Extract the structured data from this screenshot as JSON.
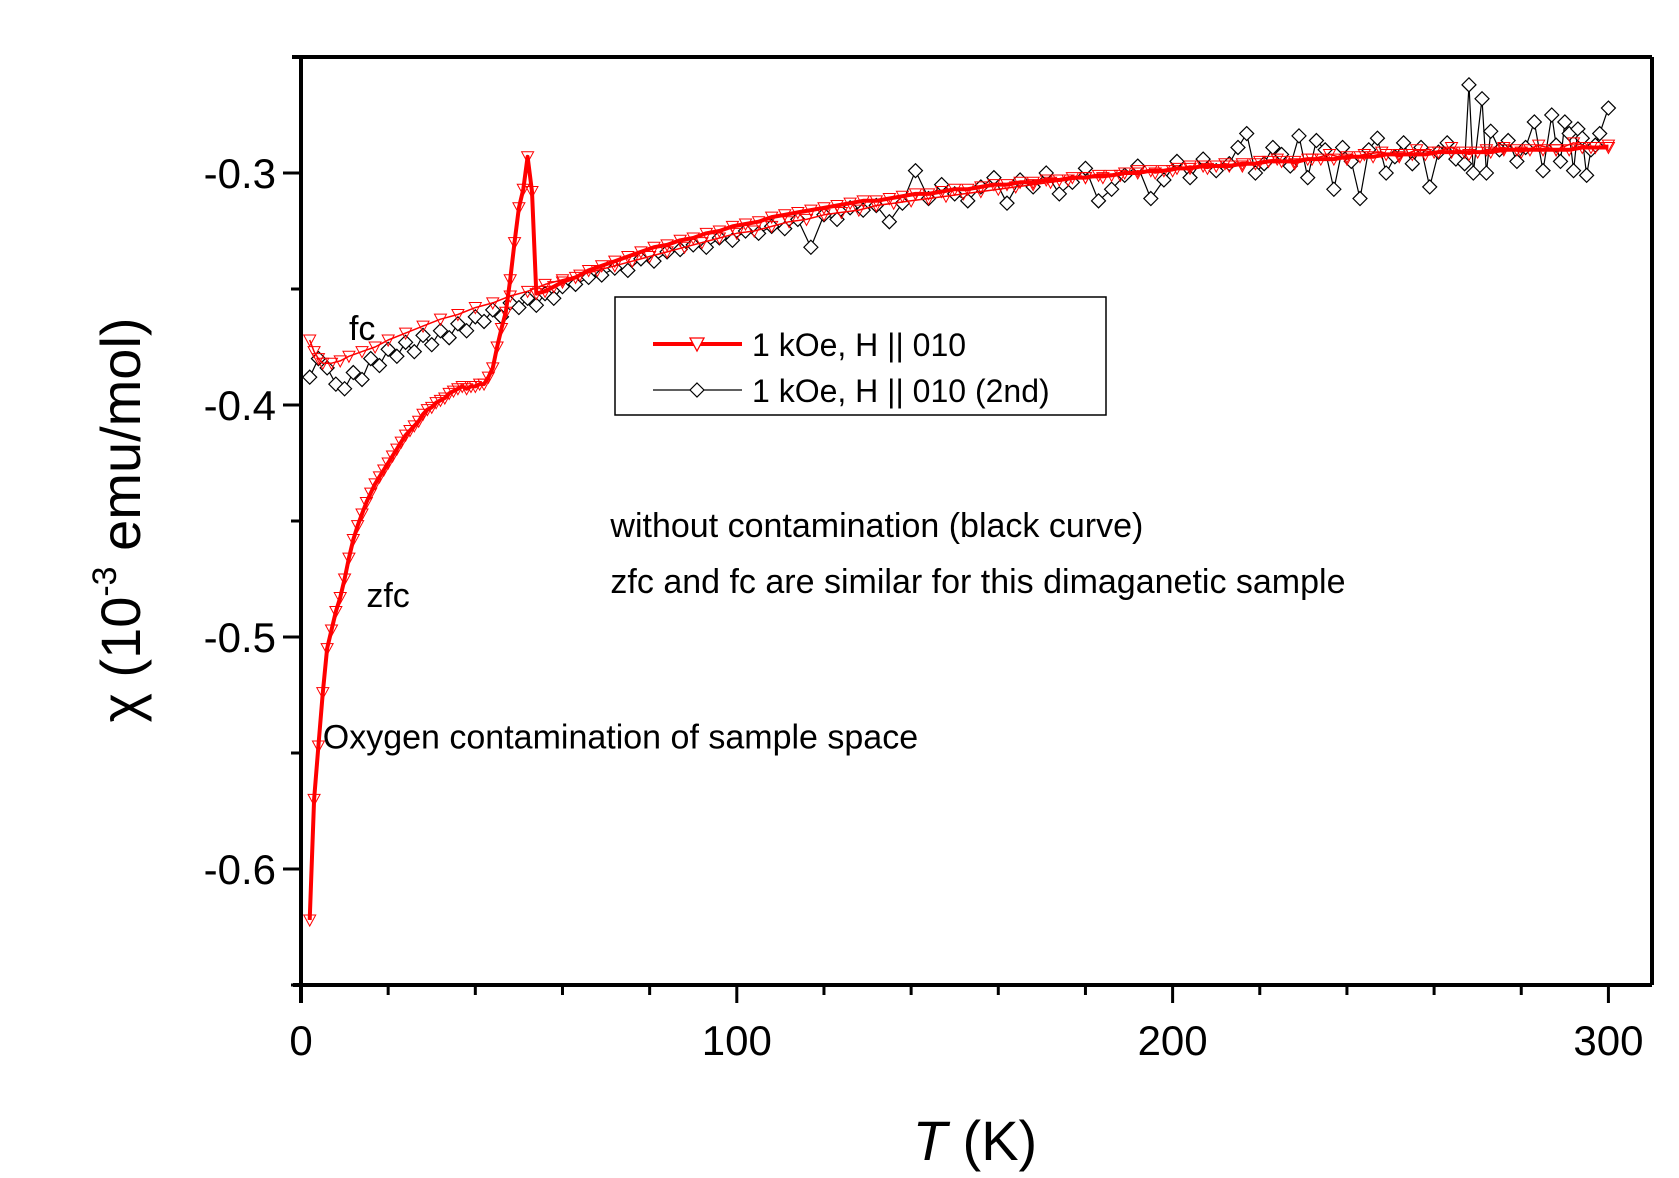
{
  "chart_data": {
    "type": "line",
    "title": "",
    "xlabel": {
      "italic": "T",
      "rest": " (K)"
    },
    "ylabel": {
      "prefix": "χ (10",
      "sup": "-3",
      "suffix": " emu/mol)"
    },
    "xlim": [
      0,
      310
    ],
    "ylim": [
      -0.65,
      -0.25
    ],
    "x_ticks_major": [
      0,
      100,
      200,
      300
    ],
    "x_tick_labels": [
      "0",
      "100",
      "200",
      "300"
    ],
    "x_ticks_minor_step": 20,
    "y_ticks_major": [
      -0.3,
      -0.4,
      -0.5,
      -0.6
    ],
    "y_tick_labels": [
      "-0.3",
      "-0.4",
      "-0.5",
      "-0.6"
    ],
    "y_ticks_minor": [
      -0.35,
      -0.45,
      -0.55,
      -0.65
    ],
    "grid": false,
    "legend": {
      "placement": "center",
      "entries": [
        {
          "label": "1 kOe, H || 010",
          "color": "#ff0000",
          "marker": "triangle-down"
        },
        {
          "label": "1 kOe, H || 010 (2nd)",
          "color": "#000000",
          "marker": "diamond"
        }
      ]
    },
    "annotations": [
      {
        "text": "fc",
        "x": 11,
        "y": -0.372
      },
      {
        "text": "zfc",
        "x": 15,
        "y": -0.487
      },
      {
        "text": "Oxygen contamination of sample space",
        "x": 5,
        "y": -0.548
      },
      {
        "text": "without contamination (black curve)",
        "x": 71,
        "y": -0.457
      },
      {
        "text": "zfc and fc are similar for this dimaganetic sample",
        "x": 71,
        "y": -0.481
      }
    ],
    "series": [
      {
        "name": "1 kOe, H || 010",
        "color": "#ff0000",
        "marker": "triangle-down",
        "segments": [
          {
            "label": "zfc",
            "x": [
              2,
              3,
              4,
              5,
              6,
              7,
              8,
              9,
              10,
              11,
              12,
              13,
              14,
              15,
              16,
              17,
              18,
              19,
              20,
              21,
              22,
              23,
              24,
              25,
              26,
              27,
              28,
              29,
              30,
              31,
              32,
              33,
              34,
              35,
              36,
              37,
              38,
              39,
              40,
              41,
              42,
              43,
              44,
              45,
              46,
              47,
              48,
              49,
              50,
              51,
              52,
              53,
              54,
              56,
              58,
              60,
              63,
              66,
              69,
              72,
              75,
              78,
              81,
              84,
              87,
              90,
              93,
              96,
              99,
              102,
              105,
              108,
              111,
              114,
              117,
              120,
              123,
              126,
              129,
              132,
              135,
              138,
              141,
              144,
              147,
              150,
              153,
              156,
              159,
              162,
              165,
              168,
              171,
              174,
              177,
              180,
              183,
              186,
              189,
              192,
              195,
              198,
              201,
              204,
              207,
              210,
              213,
              216,
              219,
              222,
              225,
              228,
              231,
              234,
              237,
              240,
              243,
              246,
              249,
              252,
              255,
              258,
              261,
              264,
              267,
              270,
              273,
              276,
              279,
              282,
              285,
              288,
              291,
              294,
              297,
              300
            ],
            "y": [
              -0.622,
              -0.57,
              -0.547,
              -0.524,
              -0.505,
              -0.497,
              -0.489,
              -0.483,
              -0.475,
              -0.466,
              -0.458,
              -0.452,
              -0.447,
              -0.442,
              -0.438,
              -0.434,
              -0.431,
              -0.428,
              -0.425,
              -0.422,
              -0.419,
              -0.416,
              -0.413,
              -0.411,
              -0.409,
              -0.407,
              -0.404,
              -0.402,
              -0.401,
              -0.399,
              -0.398,
              -0.397,
              -0.395,
              -0.394,
              -0.393,
              -0.392,
              -0.393,
              -0.392,
              -0.392,
              -0.391,
              -0.391,
              -0.388,
              -0.384,
              -0.375,
              -0.367,
              -0.36,
              -0.346,
              -0.33,
              -0.315,
              -0.307,
              -0.293,
              -0.308,
              -0.352,
              -0.351,
              -0.349,
              -0.347,
              -0.345,
              -0.342,
              -0.34,
              -0.338,
              -0.336,
              -0.334,
              -0.332,
              -0.331,
              -0.329,
              -0.328,
              -0.326,
              -0.325,
              -0.323,
              -0.322,
              -0.321,
              -0.319,
              -0.318,
              -0.317,
              -0.316,
              -0.315,
              -0.314,
              -0.313,
              -0.312,
              -0.312,
              -0.311,
              -0.31,
              -0.309,
              -0.309,
              -0.308,
              -0.307,
              -0.307,
              -0.306,
              -0.305,
              -0.305,
              -0.304,
              -0.304,
              -0.303,
              -0.303,
              -0.302,
              -0.302,
              -0.301,
              -0.301,
              -0.3,
              -0.3,
              -0.299,
              -0.299,
              -0.298,
              -0.298,
              -0.297,
              -0.297,
              -0.297,
              -0.296,
              -0.296,
              -0.295,
              -0.295,
              -0.295,
              -0.294,
              -0.294,
              -0.294,
              -0.293,
              -0.293,
              -0.293,
              -0.292,
              -0.292,
              -0.292,
              -0.292,
              -0.291,
              -0.291,
              -0.291,
              -0.291,
              -0.291,
              -0.29,
              -0.29,
              -0.29,
              -0.29,
              -0.29,
              -0.29,
              -0.289,
              -0.289,
              -0.289
            ]
          },
          {
            "label": "fc",
            "x": [
              300,
              296,
              292,
              288,
              284,
              280,
              276,
              272,
              268,
              264,
              260,
              256,
              252,
              248,
              244,
              240,
              236,
              232,
              228,
              224,
              220,
              216,
              212,
              208,
              204,
              200,
              196,
              192,
              188,
              184,
              180,
              176,
              172,
              168,
              164,
              160,
              156,
              152,
              148,
              144,
              140,
              136,
              132,
              128,
              124,
              120,
              116,
              112,
              108,
              104,
              100,
              96,
              92,
              88,
              84,
              80,
              76,
              72,
              68,
              64,
              60,
              56,
              52,
              48,
              44,
              40,
              36,
              32,
              28,
              24,
              20,
              17,
              14,
              11,
              9,
              7,
              5,
              4,
              3,
              2
            ],
            "y": [
              -0.288,
              -0.289,
              -0.287,
              -0.29,
              -0.288,
              -0.291,
              -0.289,
              -0.29,
              -0.292,
              -0.289,
              -0.291,
              -0.29,
              -0.293,
              -0.291,
              -0.292,
              -0.294,
              -0.292,
              -0.294,
              -0.296,
              -0.294,
              -0.295,
              -0.297,
              -0.296,
              -0.298,
              -0.297,
              -0.299,
              -0.3,
              -0.299,
              -0.301,
              -0.302,
              -0.302,
              -0.303,
              -0.304,
              -0.305,
              -0.306,
              -0.307,
              -0.308,
              -0.309,
              -0.31,
              -0.311,
              -0.312,
              -0.313,
              -0.314,
              -0.316,
              -0.317,
              -0.318,
              -0.32,
              -0.321,
              -0.323,
              -0.325,
              -0.326,
              -0.328,
              -0.33,
              -0.332,
              -0.334,
              -0.336,
              -0.338,
              -0.34,
              -0.342,
              -0.344,
              -0.346,
              -0.348,
              -0.351,
              -0.353,
              -0.356,
              -0.358,
              -0.361,
              -0.363,
              -0.366,
              -0.369,
              -0.372,
              -0.375,
              -0.377,
              -0.379,
              -0.381,
              -0.382,
              -0.382,
              -0.38,
              -0.377,
              -0.372
            ]
          }
        ]
      },
      {
        "name": "1 kOe, H || 010 (2nd)",
        "color": "#000000",
        "marker": "diamond",
        "x": [
          2,
          4,
          6,
          8,
          10,
          12,
          14,
          16,
          18,
          20,
          22,
          24,
          26,
          28,
          30,
          32,
          34,
          36,
          38,
          40,
          42,
          44,
          46,
          48,
          50,
          52,
          54,
          56,
          58,
          60,
          63,
          66,
          69,
          72,
          75,
          78,
          81,
          84,
          87,
          90,
          93,
          96,
          99,
          102,
          105,
          108,
          111,
          114,
          117,
          120,
          123,
          126,
          129,
          132,
          135,
          138,
          141,
          144,
          147,
          150,
          153,
          156,
          159,
          162,
          165,
          168,
          171,
          174,
          177,
          180,
          183,
          186,
          189,
          192,
          195,
          198,
          201,
          204,
          207,
          210,
          213,
          215,
          217,
          219,
          221,
          223,
          225,
          227,
          229,
          231,
          233,
          235,
          237,
          239,
          241,
          243,
          245,
          247,
          249,
          251,
          253,
          255,
          257,
          259,
          261,
          263,
          265,
          267,
          268,
          269,
          271,
          272,
          273,
          275,
          277,
          279,
          281,
          283,
          285,
          287,
          288,
          289,
          290,
          291,
          292,
          293,
          294,
          295,
          296,
          297,
          298,
          300
        ],
        "y": [
          -0.388,
          -0.38,
          -0.384,
          -0.391,
          -0.393,
          -0.386,
          -0.389,
          -0.38,
          -0.383,
          -0.376,
          -0.379,
          -0.373,
          -0.377,
          -0.37,
          -0.374,
          -0.368,
          -0.371,
          -0.365,
          -0.368,
          -0.362,
          -0.364,
          -0.359,
          -0.362,
          -0.356,
          -0.358,
          -0.354,
          -0.357,
          -0.352,
          -0.354,
          -0.349,
          -0.348,
          -0.345,
          -0.344,
          -0.341,
          -0.342,
          -0.337,
          -0.338,
          -0.334,
          -0.333,
          -0.331,
          -0.332,
          -0.328,
          -0.329,
          -0.325,
          -0.326,
          -0.323,
          -0.324,
          -0.32,
          -0.332,
          -0.318,
          -0.32,
          -0.315,
          -0.316,
          -0.314,
          -0.321,
          -0.313,
          -0.299,
          -0.311,
          -0.305,
          -0.309,
          -0.312,
          -0.306,
          -0.302,
          -0.313,
          -0.303,
          -0.306,
          -0.3,
          -0.309,
          -0.304,
          -0.298,
          -0.312,
          -0.307,
          -0.301,
          -0.297,
          -0.311,
          -0.303,
          -0.295,
          -0.302,
          -0.294,
          -0.299,
          -0.296,
          -0.289,
          -0.283,
          -0.3,
          -0.296,
          -0.289,
          -0.292,
          -0.297,
          -0.284,
          -0.302,
          -0.286,
          -0.29,
          -0.307,
          -0.289,
          -0.295,
          -0.311,
          -0.29,
          -0.285,
          -0.3,
          -0.293,
          -0.287,
          -0.296,
          -0.289,
          -0.306,
          -0.291,
          -0.287,
          -0.294,
          -0.296,
          -0.262,
          -0.3,
          -0.268,
          -0.3,
          -0.282,
          -0.29,
          -0.286,
          -0.295,
          -0.289,
          -0.278,
          -0.299,
          -0.275,
          -0.288,
          -0.295,
          -0.278,
          -0.283,
          -0.299,
          -0.281,
          -0.285,
          -0.301,
          -0.29,
          -0.288,
          -0.283,
          -0.272
        ]
      }
    ]
  }
}
